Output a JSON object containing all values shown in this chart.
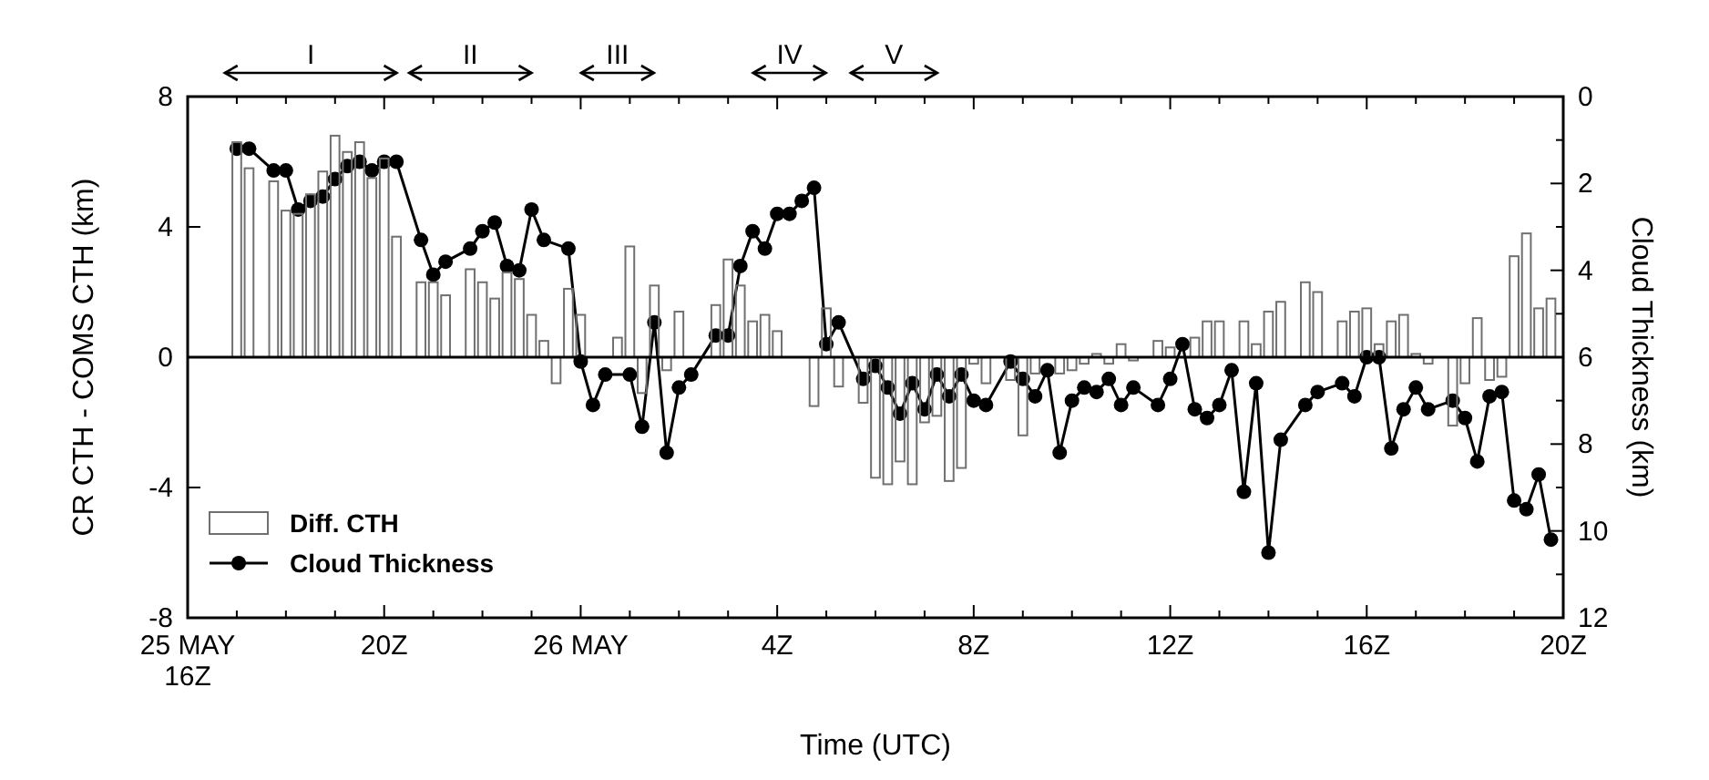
{
  "chart_data": {
    "type": "bar",
    "xlabel": "Time (UTC)",
    "ylabel": "CR CTH - COMS CTH (km)",
    "y2label": "Cloud Thickness (km)",
    "xlim": [
      "--05-25T16:00",
      "--05-26T20:00"
    ],
    "xticks": [
      {
        "value": "--05-25T16:00",
        "label": "25 MAY\n16Z"
      },
      {
        "value": "--05-25T17:00",
        "label": null
      },
      {
        "value": "--05-25T18:00",
        "label": null
      },
      {
        "value": "--05-25T19:00",
        "label": null
      },
      {
        "value": "--05-25T20:00",
        "label": "20Z"
      },
      {
        "value": "--05-25T21:00",
        "label": null
      },
      {
        "value": "--05-25T22:00",
        "label": null
      },
      {
        "value": "--05-25T23:00",
        "label": null
      },
      {
        "value": "--05-26T00:00",
        "label": "26 MAY"
      },
      {
        "value": "--05-26T01:00",
        "label": null
      },
      {
        "value": "--05-26T02:00",
        "label": null
      },
      {
        "value": "--05-26T03:00",
        "label": null
      },
      {
        "value": "--05-26T04:00",
        "label": "4Z"
      },
      {
        "value": "--05-26T05:00",
        "label": null
      },
      {
        "value": "--05-26T06:00",
        "label": null
      },
      {
        "value": "--05-26T07:00",
        "label": null
      },
      {
        "value": "--05-26T08:00",
        "label": "8Z"
      },
      {
        "value": "--05-26T09:00",
        "label": null
      },
      {
        "value": "--05-26T10:00",
        "label": null
      },
      {
        "value": "--05-26T11:00",
        "label": null
      },
      {
        "value": "--05-26T12:00",
        "label": "12Z"
      },
      {
        "value": "--05-26T13:00",
        "label": null
      },
      {
        "value": "--05-26T14:00",
        "label": null
      },
      {
        "value": "--05-26T15:00",
        "label": null
      },
      {
        "value": "--05-26T16:00",
        "label": "16Z"
      },
      {
        "value": "--05-26T17:00",
        "label": null
      },
      {
        "value": "--05-26T18:00",
        "label": null
      },
      {
        "value": "--05-26T19:00",
        "label": null
      },
      {
        "value": "--05-26T20:00",
        "label": "20Z"
      }
    ],
    "ylim": [
      -8,
      8
    ],
    "yticks": [
      -8,
      -4,
      0,
      4,
      8
    ],
    "y2lim": [
      12,
      0
    ],
    "y2ticks": [
      0,
      {
        "value": 1,
        "label": null
      },
      2,
      {
        "value": 3,
        "label": null
      },
      4,
      {
        "value": 5,
        "label": null
      },
      6,
      {
        "value": 7,
        "label": null
      },
      8,
      {
        "value": 9,
        "label": null
      },
      10,
      {
        "value": 11,
        "label": null
      },
      12
    ],
    "series": [
      {
        "name": "Diff. CTH",
        "color": "#707070",
        "x": [
          "--05-25T17:00",
          "--05-25T17:15",
          "--05-25T17:45",
          "--05-25T18:00",
          "--05-25T18:15",
          "--05-25T18:30",
          "--05-25T18:45",
          "--05-25T19:00",
          "--05-25T19:15",
          "--05-25T19:30",
          "--05-25T19:45",
          "--05-25T20:00",
          "--05-25T20:15",
          "--05-25T20:45",
          "--05-25T21:00",
          "--05-25T21:15",
          "--05-25T21:45",
          "--05-25T22:00",
          "--05-25T22:15",
          "--05-25T22:30",
          "--05-25T22:45",
          "--05-25T23:00",
          "--05-25T23:15",
          "--05-25T23:30",
          "--05-25T23:45",
          "--05-26T00:00",
          "--05-26T00:45",
          "--05-26T01:00",
          "--05-26T01:15",
          "--05-26T01:30",
          "--05-26T01:45",
          "--05-26T02:00",
          "--05-26T02:45",
          "--05-26T03:00",
          "--05-26T03:15",
          "--05-26T03:30",
          "--05-26T03:45",
          "--05-26T04:00",
          "--05-26T04:45",
          "--05-26T05:00",
          "--05-26T05:15",
          "--05-26T05:45",
          "--05-26T06:00",
          "--05-26T06:15",
          "--05-26T06:30",
          "--05-26T06:45",
          "--05-26T07:00",
          "--05-26T07:15",
          "--05-26T07:30",
          "--05-26T07:45",
          "--05-26T08:00",
          "--05-26T08:15",
          "--05-26T08:45",
          "--05-26T09:00",
          "--05-26T09:15",
          "--05-26T09:45",
          "--05-26T10:00",
          "--05-26T10:15",
          "--05-26T10:30",
          "--05-26T10:45",
          "--05-26T11:00",
          "--05-26T11:15",
          "--05-26T11:45",
          "--05-26T12:00",
          "--05-26T12:30",
          "--05-26T12:45",
          "--05-26T13:00",
          "--05-26T13:30",
          "--05-26T13:45",
          "--05-26T14:00",
          "--05-26T14:15",
          "--05-26T14:45",
          "--05-26T15:00",
          "--05-26T15:30",
          "--05-26T15:45",
          "--05-26T16:00",
          "--05-26T16:15",
          "--05-26T16:30",
          "--05-26T16:45",
          "--05-26T17:00",
          "--05-26T17:15",
          "--05-26T17:45",
          "--05-26T18:00",
          "--05-26T18:15",
          "--05-26T18:30",
          "--05-26T18:45",
          "--05-26T19:00",
          "--05-26T19:15",
          "--05-26T19:30",
          "--05-26T19:45"
        ],
        "values": [
          6.6,
          5.8,
          5.4,
          4.5,
          4.4,
          5.0,
          5.7,
          6.8,
          6.3,
          6.6,
          5.5,
          6.1,
          3.7,
          2.3,
          2.3,
          1.9,
          2.7,
          2.3,
          1.8,
          2.6,
          2.4,
          1.3,
          0.5,
          -0.8,
          2.1,
          1.3,
          0.6,
          3.4,
          -1.1,
          2.2,
          -0.4,
          1.4,
          1.6,
          3.0,
          2.2,
          1.1,
          1.3,
          0.8,
          -1.5,
          1.5,
          -0.9,
          -1.4,
          -3.7,
          -3.9,
          -3.2,
          -3.9,
          -2.0,
          -1.8,
          -3.8,
          -3.4,
          -0.2,
          -0.8,
          -0.7,
          -2.4,
          -0.5,
          -0.5,
          -0.4,
          -0.2,
          0.1,
          -0.2,
          0.4,
          -0.1,
          0.5,
          0.3,
          0.6,
          1.1,
          1.1,
          1.1,
          0.4,
          1.4,
          1.7,
          2.3,
          2.0,
          1.1,
          1.4,
          1.5,
          0.4,
          1.1,
          1.3,
          0.1,
          -0.2,
          -2.1,
          -0.8,
          1.2,
          -0.7,
          -0.6,
          3.1,
          3.8,
          1.5,
          1.8
        ]
      },
      {
        "name": "Cloud Thickness",
        "type": "line",
        "axis": "y2",
        "color": "#000000",
        "marker": "circle",
        "x": [
          "--05-25T17:00",
          "--05-25T17:15",
          "--05-25T17:45",
          "--05-25T18:00",
          "--05-25T18:15",
          "--05-25T18:30",
          "--05-25T18:45",
          "--05-25T19:00",
          "--05-25T19:15",
          "--05-25T19:30",
          "--05-25T19:45",
          "--05-25T20:00",
          "--05-25T20:15",
          "--05-25T20:45",
          "--05-25T21:00",
          "--05-25T21:15",
          "--05-25T21:45",
          "--05-25T22:00",
          "--05-25T22:15",
          "--05-25T22:30",
          "--05-25T22:45",
          "--05-25T23:00",
          "--05-25T23:15",
          "--05-25T23:45",
          "--05-26T00:00",
          "--05-26T00:15",
          "--05-26T00:30",
          "--05-26T01:00",
          "--05-26T01:15",
          "--05-26T01:30",
          "--05-26T01:45",
          "--05-26T02:00",
          "--05-26T02:15",
          "--05-26T02:45",
          "--05-26T03:00",
          "--05-26T03:15",
          "--05-26T03:30",
          "--05-26T03:45",
          "--05-26T04:00",
          "--05-26T04:15",
          "--05-26T04:30",
          "--05-26T04:45",
          "--05-26T05:00",
          "--05-26T05:15",
          "--05-26T05:45",
          "--05-26T06:00",
          "--05-26T06:15",
          "--05-26T06:30",
          "--05-26T06:45",
          "--05-26T07:00",
          "--05-26T07:15",
          "--05-26T07:30",
          "--05-26T07:45",
          "--05-26T08:00",
          "--05-26T08:15",
          "--05-26T08:45",
          "--05-26T09:00",
          "--05-26T09:15",
          "--05-26T09:30",
          "--05-26T09:45",
          "--05-26T10:00",
          "--05-26T10:15",
          "--05-26T10:30",
          "--05-26T10:45",
          "--05-26T11:00",
          "--05-26T11:15",
          "--05-26T11:45",
          "--05-26T12:00",
          "--05-26T12:15",
          "--05-26T12:30",
          "--05-26T12:45",
          "--05-26T13:00",
          "--05-26T13:15",
          "--05-26T13:30",
          "--05-26T13:45",
          "--05-26T14:00",
          "--05-26T14:15",
          "--05-26T14:45",
          "--05-26T15:00",
          "--05-26T15:30",
          "--05-26T15:45",
          "--05-26T16:00",
          "--05-26T16:15",
          "--05-26T16:30",
          "--05-26T16:45",
          "--05-26T17:00",
          "--05-26T17:15",
          "--05-26T17:45",
          "--05-26T18:00",
          "--05-26T18:15",
          "--05-26T18:30",
          "--05-26T18:45",
          "--05-26T19:00",
          "--05-26T19:15",
          "--05-26T19:30",
          "--05-26T19:45"
        ],
        "values": [
          1.2,
          1.2,
          1.7,
          1.7,
          2.6,
          2.4,
          2.3,
          1.9,
          1.6,
          1.5,
          1.7,
          1.5,
          1.5,
          3.3,
          4.1,
          3.8,
          3.5,
          3.1,
          2.9,
          3.9,
          4.0,
          2.6,
          3.3,
          3.5,
          6.1,
          7.1,
          6.4,
          6.4,
          7.6,
          5.2,
          8.2,
          6.7,
          6.4,
          5.5,
          5.5,
          3.9,
          3.1,
          3.5,
          2.7,
          2.7,
          2.4,
          2.1,
          5.7,
          5.2,
          6.5,
          6.2,
          6.7,
          7.3,
          6.6,
          7.2,
          6.4,
          6.9,
          6.4,
          7.0,
          7.1,
          6.1,
          6.5,
          6.9,
          6.3,
          8.2,
          7.0,
          6.7,
          6.8,
          6.5,
          7.1,
          6.7,
          7.1,
          6.5,
          5.7,
          7.2,
          7.4,
          7.1,
          6.3,
          9.1,
          6.6,
          10.5,
          7.9,
          7.1,
          6.8,
          6.6,
          6.9,
          6.0,
          6.0,
          8.1,
          7.2,
          6.7,
          7.2,
          7.0,
          7.4,
          8.4,
          6.9,
          6.8,
          9.3,
          9.5,
          8.7,
          10.2
        ]
      }
    ],
    "ref_lines": [
      {
        "axis": "y",
        "value": 0
      }
    ],
    "annotations": [
      "I",
      "II",
      "III",
      "IV",
      "V"
    ],
    "legend": "bottom left",
    "grid": false
  }
}
